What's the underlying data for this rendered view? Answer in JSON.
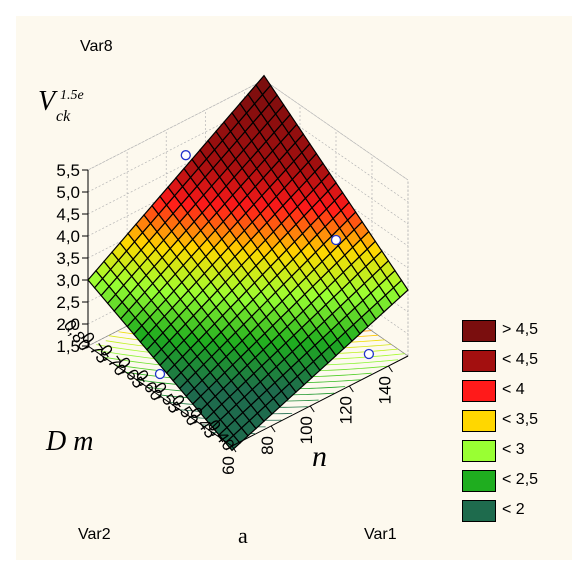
{
  "chart_data": {
    "type": "surface3d",
    "title": "Var8",
    "zlabel_main": "V",
    "zlabel_sup": "1.5e",
    "zlabel_sub": "ck",
    "ylabel": "D m",
    "xlabel_n": "n",
    "bottom_left_var": "Var2",
    "bottom_center_label": "a",
    "bottom_right_var": "Var1",
    "z_ticks": [
      "5,5",
      "5,0",
      "4,5",
      "4,0",
      "3,5",
      "3,0",
      "2,5",
      "2,0",
      "1,5"
    ],
    "y_ticks": [
      "0,80",
      "0,75",
      "0,70",
      "0,65",
      "0,60",
      "0,55",
      "0,50",
      "0,45",
      "0,40"
    ],
    "x_ticks": [
      "60",
      "80",
      "100",
      "120",
      "140"
    ],
    "xlim": [
      60,
      150
    ],
    "ylim": [
      0.4,
      0.8
    ],
    "zlim": [
      1.5,
      5.5
    ],
    "surface": {
      "type": "plane",
      "corners": [
        {
          "n": 60,
          "D": 0.4,
          "V": 1.4
        },
        {
          "n": 150,
          "D": 0.4,
          "V": 3.0
        },
        {
          "n": 60,
          "D": 0.8,
          "V": 3.0
        },
        {
          "n": 150,
          "D": 0.8,
          "V": 5.6
        }
      ]
    },
    "points": [
      {
        "n": 110,
        "D": 0.8,
        "V": 4.7
      },
      {
        "n": 150,
        "D": 0.6,
        "V": 3.0
      },
      {
        "n": 130,
        "D": 0.4,
        "V": 2.0
      },
      {
        "n": 60,
        "D": 0.6,
        "V": 2.0
      }
    ],
    "legend": [
      {
        "label": "> 4,5",
        "color": "#7a0e0e"
      },
      {
        "label": "< 4,5",
        "color": "#a30f0f"
      },
      {
        "label": "< 4",
        "color": "#ff1a1a"
      },
      {
        "label": "< 3,5",
        "color": "#ffd700"
      },
      {
        "label": "< 3",
        "color": "#99ff33"
      },
      {
        "label": "< 2,5",
        "color": "#1fad1f"
      },
      {
        "label": "< 2",
        "color": "#1e6b4d"
      }
    ],
    "grid": true
  }
}
